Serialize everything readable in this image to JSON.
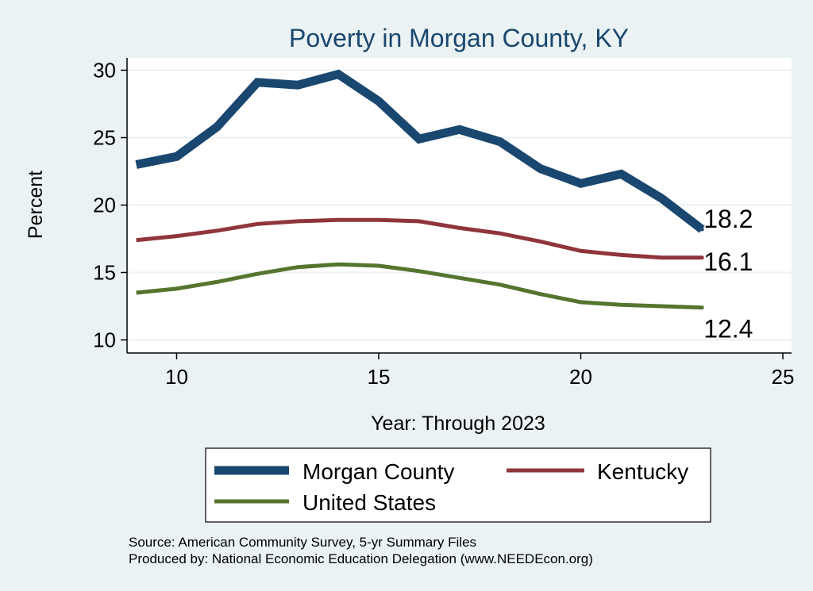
{
  "chart_data": {
    "type": "line",
    "title": "Poverty in Morgan County, KY",
    "xlabel": "Year: Through 2023",
    "ylabel": "Percent",
    "xlim": [
      9,
      25
    ],
    "ylim": [
      10,
      30
    ],
    "xticks": [
      10,
      15,
      20,
      25
    ],
    "yticks": [
      10,
      15,
      20,
      25,
      30
    ],
    "grid": "horizontal",
    "legend_position": "bottom",
    "x": [
      9,
      10,
      11,
      12,
      13,
      14,
      15,
      16,
      17,
      18,
      19,
      20,
      21,
      22,
      23
    ],
    "series": [
      {
        "name": "Morgan County",
        "color": "#1a476f",
        "values": [
          23.0,
          23.6,
          25.8,
          29.1,
          28.9,
          29.7,
          27.7,
          24.9,
          25.6,
          24.7,
          22.7,
          21.6,
          22.3,
          20.5,
          18.2
        ],
        "end_label": "18.2"
      },
      {
        "name": "Kentucky",
        "color": "#90353b",
        "values": [
          17.4,
          17.7,
          18.1,
          18.6,
          18.8,
          18.9,
          18.9,
          18.8,
          18.3,
          17.9,
          17.3,
          16.6,
          16.3,
          16.1,
          16.1
        ],
        "end_label": "16.1"
      },
      {
        "name": "United States",
        "color": "#55752f",
        "values": [
          13.5,
          13.8,
          14.3,
          14.9,
          15.4,
          15.6,
          15.5,
          15.1,
          14.6,
          14.1,
          13.4,
          12.8,
          12.6,
          12.5,
          12.4
        ],
        "end_label": "12.4"
      }
    ],
    "notes": [
      "Source: American Community Survey, 5-yr Summary Files",
      "Produced by: National Economic Education Delegation (www.NEEDEcon.org)"
    ]
  }
}
